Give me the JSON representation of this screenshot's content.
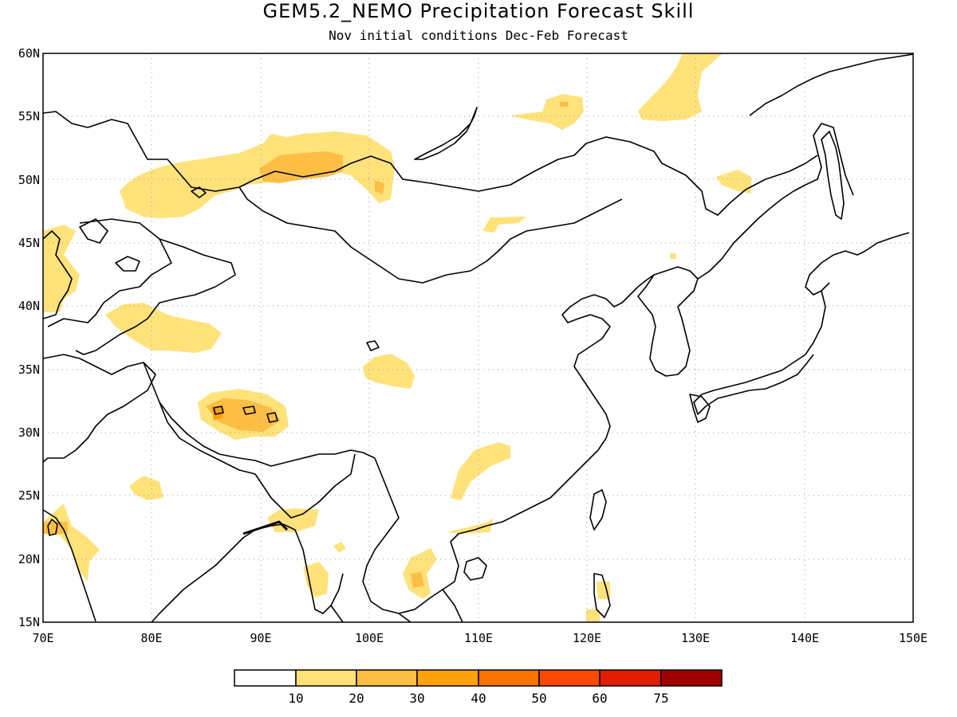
{
  "title": "GEM5.2_NEMO Precipitation Forecast Skill",
  "subtitle": "Nov initial conditions  Dec-Feb Forecast",
  "map": {
    "lon_range": [
      70,
      150
    ],
    "lat_range": [
      15,
      60
    ],
    "lat_ticks": [
      "60N",
      "55N",
      "50N",
      "45N",
      "40N",
      "35N",
      "30N",
      "25N",
      "20N",
      "15N"
    ],
    "lon_ticks": [
      "70E",
      "80E",
      "90E",
      "100E",
      "110E",
      "120E",
      "130E",
      "140E",
      "150E"
    ],
    "grid": true,
    "coastline_color": "#000000"
  },
  "colorbar": {
    "colors": [
      "#ffffff",
      "#ffe27a",
      "#fcbe44",
      "#fca20f",
      "#fc7400",
      "#fc4a00",
      "#e21c00",
      "#a00000"
    ],
    "labels": [
      "10",
      "20",
      "30",
      "40",
      "50",
      "60",
      "75"
    ]
  }
}
